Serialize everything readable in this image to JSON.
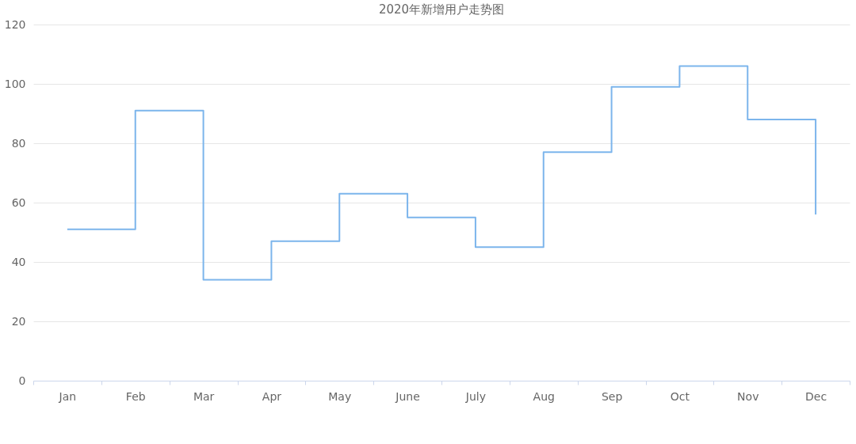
{
  "chart_data": {
    "type": "step",
    "title": "2020年新增用户走势图",
    "categories": [
      "Jan",
      "Feb",
      "Mar",
      "Apr",
      "May",
      "June",
      "July",
      "Aug",
      "Sep",
      "Oct",
      "Nov",
      "Dec"
    ],
    "series": [
      {
        "color": "#7cb5ec",
        "values": [
          51,
          91,
          34,
          47,
          63,
          55,
          45,
          77,
          99,
          106,
          88,
          56
        ]
      }
    ],
    "ylim": [
      0,
      120
    ],
    "yticks": [
      0,
      20,
      40,
      60,
      80,
      100,
      120
    ],
    "grid": "y",
    "legend": false,
    "marker": "none",
    "line_style": "solid"
  }
}
